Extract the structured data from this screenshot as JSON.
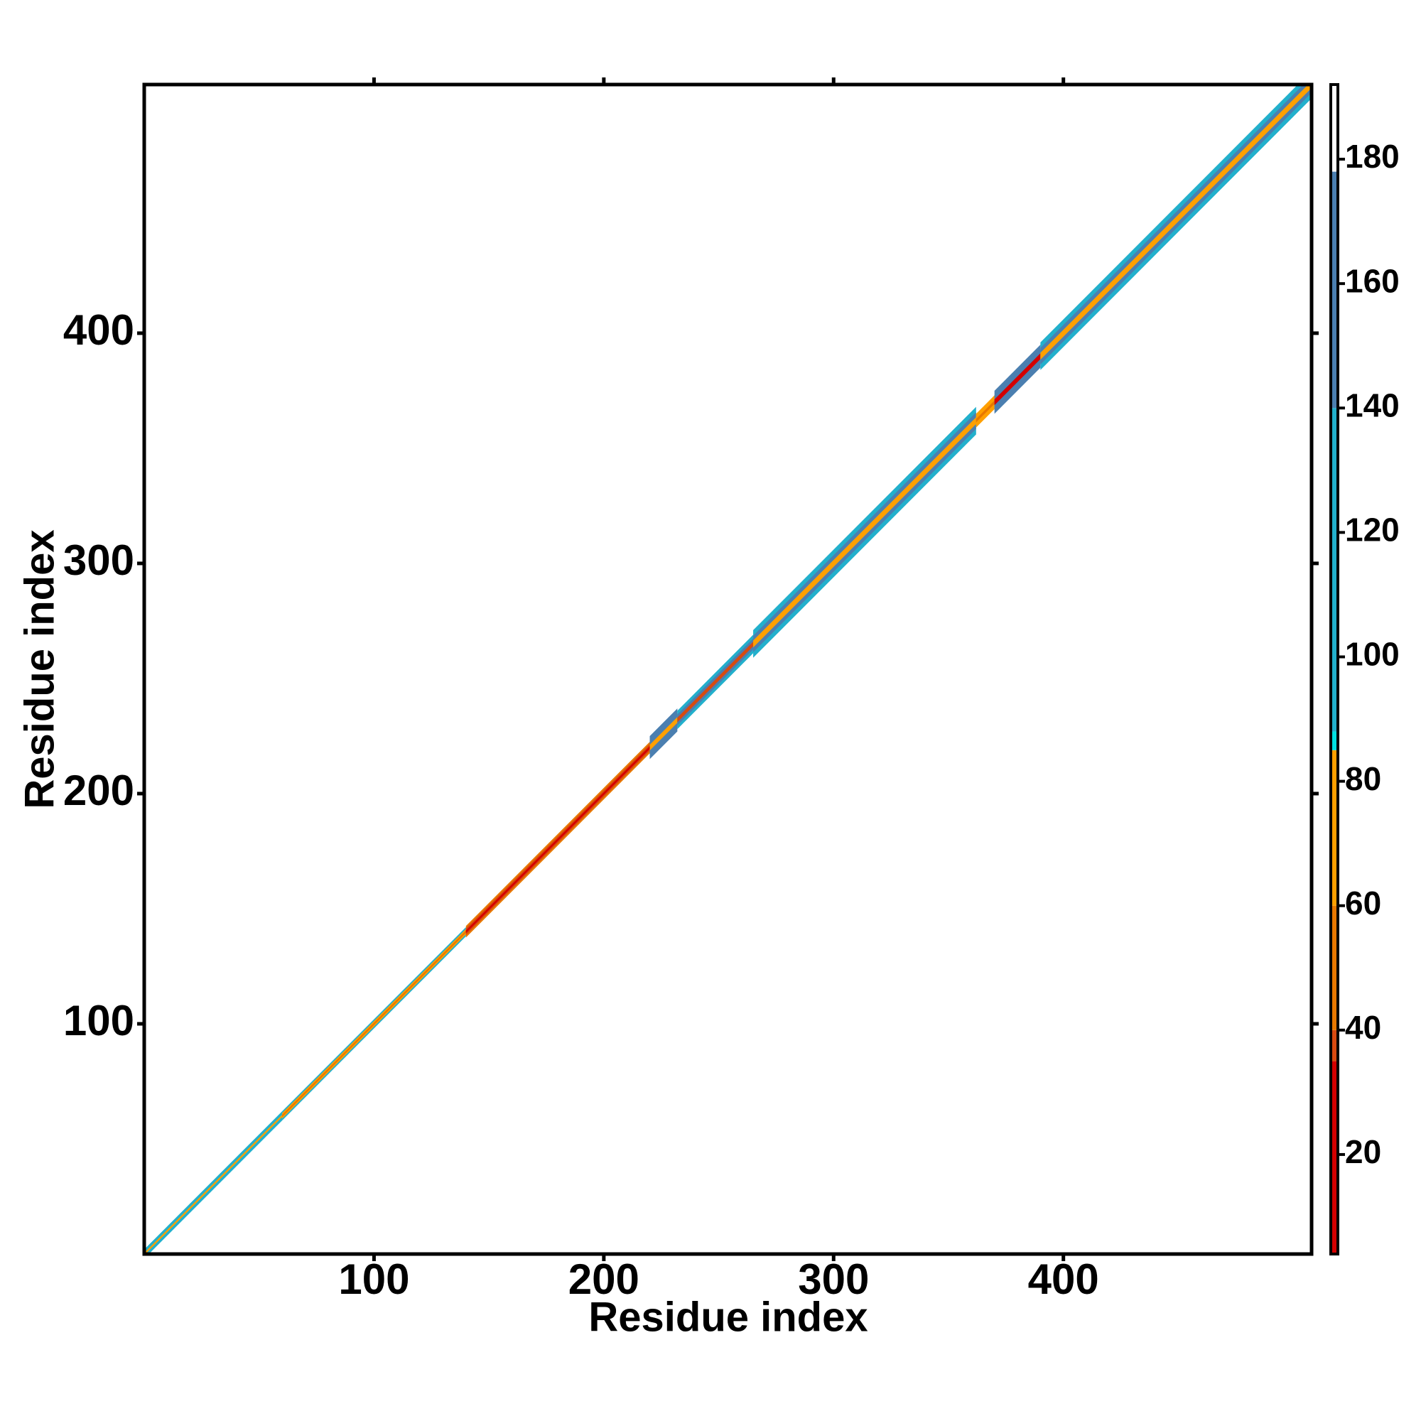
{
  "chart_data": {
    "type": "contact_map",
    "xlabel": "Residue index",
    "ylabel": "Residue index",
    "xlim": [
      0,
      508
    ],
    "ylim": [
      0,
      508
    ],
    "xticks": [
      100,
      200,
      300,
      400
    ],
    "yticks": [
      100,
      200,
      300,
      400
    ],
    "segments": [
      {
        "start": 0,
        "end": 60,
        "half_width": 2,
        "edge": 100,
        "mid": 120,
        "core": 70
      },
      {
        "start": 60,
        "end": 140,
        "half_width": 2,
        "edge": 100,
        "mid": 70,
        "core": 50
      },
      {
        "start": 140,
        "end": 220,
        "half_width": 2.5,
        "edge": 60,
        "mid": 40,
        "core": 20
      },
      {
        "start": 220,
        "end": 232,
        "half_width": 5,
        "edge": 150,
        "mid": 160,
        "core": 70
      },
      {
        "start": 232,
        "end": 265,
        "half_width": 4,
        "edge": 140,
        "mid": 150,
        "core": 40
      },
      {
        "start": 265,
        "end": 362,
        "half_width": 6,
        "edge": 100,
        "mid": 150,
        "core": 70
      },
      {
        "start": 362,
        "end": 370,
        "half_width": 3,
        "edge": 80,
        "mid": 70,
        "core": 60
      },
      {
        "start": 370,
        "end": 390,
        "half_width": 5,
        "edge": 150,
        "mid": 160,
        "core": 30
      },
      {
        "start": 390,
        "end": 508,
        "half_width": 6,
        "edge": 100,
        "mid": 150,
        "core": 70
      }
    ],
    "colorbar": {
      "lim": [
        4,
        192
      ],
      "ticks": [
        20,
        40,
        60,
        80,
        100,
        120,
        140,
        160,
        180
      ],
      "bounds": [
        4,
        35,
        40,
        60,
        85,
        88,
        140,
        178,
        192
      ],
      "colors": [
        "#d40000",
        "#d84a10",
        "#e87800",
        "#ffa000",
        "#00e0e0",
        "#22b0cc",
        "#4b7fb0",
        "#ffffff"
      ]
    }
  }
}
